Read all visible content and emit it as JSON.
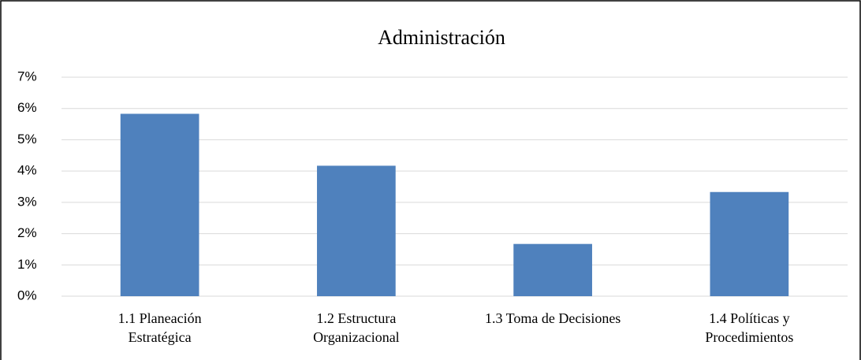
{
  "chart_data": {
    "type": "bar",
    "title": "Administración",
    "categories": [
      "1.1 Planeación\nEstratégica",
      "1.2 Estructura\nOrganizacional",
      "1.3 Toma de Decisiones",
      "1.4 Políticas y\nProcedimientos"
    ],
    "values": [
      5.83,
      4.17,
      1.67,
      3.33
    ],
    "color": "#4f81bd",
    "ylim": [
      0,
      7
    ],
    "yticks": [
      {
        "value": 0,
        "label": "0%"
      },
      {
        "value": 1,
        "label": "1%"
      },
      {
        "value": 2,
        "label": "2%"
      },
      {
        "value": 3,
        "label": "3%"
      },
      {
        "value": 4,
        "label": "4%"
      },
      {
        "value": 5,
        "label": "5%"
      },
      {
        "value": 6,
        "label": "6%"
      },
      {
        "value": 7,
        "label": "7%"
      }
    ],
    "grid": true
  }
}
